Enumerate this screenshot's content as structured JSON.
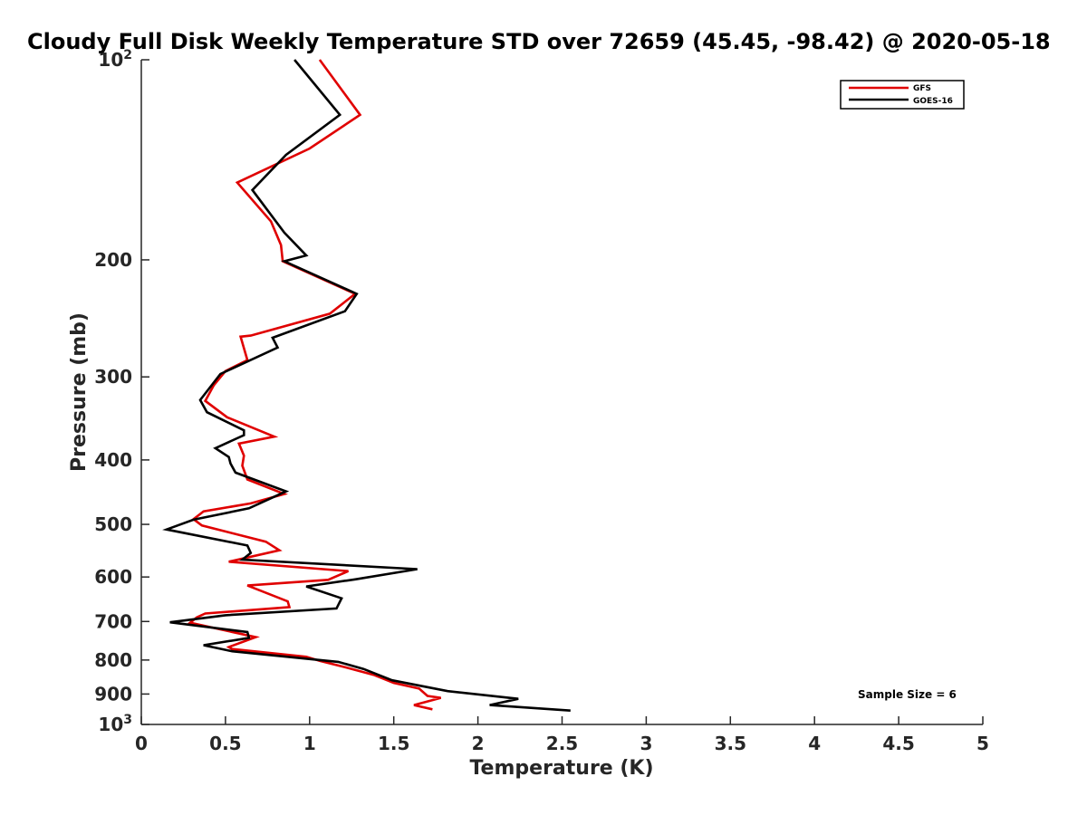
{
  "chart_data": {
    "type": "line",
    "title": "Cloudy Full Disk Weekly Temperature STD over 72659 (45.45, -98.42) @ 2020-05-18",
    "xlabel": "Temperature (K)",
    "ylabel": "Pressure (mb)",
    "xlim": [
      0,
      5
    ],
    "ylim": [
      100,
      1000
    ],
    "yscale": "log",
    "y_reversed": true,
    "grid": false,
    "legend_position": "top-right",
    "x_ticks": [
      "0",
      "0.5",
      "1",
      "1.5",
      "2",
      "2.5",
      "3",
      "3.5",
      "4",
      "4.5",
      "5"
    ],
    "x_tick_values": [
      0,
      0.5,
      1,
      1.5,
      2,
      2.5,
      3,
      3.5,
      4,
      4.5,
      5
    ],
    "y_tick_labels": [
      {
        "value": 100,
        "base": "10",
        "exp": "2"
      },
      {
        "value": 200,
        "base": "200",
        "exp": ""
      },
      {
        "value": 300,
        "base": "300",
        "exp": ""
      },
      {
        "value": 400,
        "base": "400",
        "exp": ""
      },
      {
        "value": 500,
        "base": "500",
        "exp": ""
      },
      {
        "value": 600,
        "base": "600",
        "exp": ""
      },
      {
        "value": 700,
        "base": "700",
        "exp": ""
      },
      {
        "value": 800,
        "base": "800",
        "exp": ""
      },
      {
        "value": 900,
        "base": "900",
        "exp": ""
      },
      {
        "value": 1000,
        "base": "10",
        "exp": "3"
      }
    ],
    "annotation": "Sample Size = 6",
    "series": [
      {
        "name": "GFS",
        "color": "#e00000",
        "points": [
          [
            1.06,
            100
          ],
          [
            1.3,
            121
          ],
          [
            1.0,
            136
          ],
          [
            0.57,
            153
          ],
          [
            0.77,
            175
          ],
          [
            0.83,
            190
          ],
          [
            0.84,
            201
          ],
          [
            1.27,
            225
          ],
          [
            1.12,
            241
          ],
          [
            0.65,
            260
          ],
          [
            0.59,
            261
          ],
          [
            0.63,
            283
          ],
          [
            0.5,
            294
          ],
          [
            0.43,
            309
          ],
          [
            0.38,
            326
          ],
          [
            0.51,
            345
          ],
          [
            0.79,
            369
          ],
          [
            0.58,
            378
          ],
          [
            0.61,
            394
          ],
          [
            0.6,
            408
          ],
          [
            0.63,
            428
          ],
          [
            0.85,
            450
          ],
          [
            0.65,
            465
          ],
          [
            0.37,
            478
          ],
          [
            0.31,
            491
          ],
          [
            0.36,
            502
          ],
          [
            0.74,
            531
          ],
          [
            0.82,
            547
          ],
          [
            0.52,
            569
          ],
          [
            1.23,
            588
          ],
          [
            1.11,
            606
          ],
          [
            0.63,
            618
          ],
          [
            0.87,
            653
          ],
          [
            0.88,
            666
          ],
          [
            0.38,
            681
          ],
          [
            0.33,
            690
          ],
          [
            0.29,
            703
          ],
          [
            0.68,
            739
          ],
          [
            0.53,
            763
          ],
          [
            0.52,
            765
          ],
          [
            0.54,
            770
          ],
          [
            0.98,
            791
          ],
          [
            1.06,
            802
          ],
          [
            1.21,
            820
          ],
          [
            1.38,
            842
          ],
          [
            1.5,
            866
          ],
          [
            1.65,
            883
          ],
          [
            1.7,
            906
          ],
          [
            1.78,
            912
          ],
          [
            1.62,
            935
          ],
          [
            1.73,
            949
          ]
        ]
      },
      {
        "name": "GOES-16",
        "color": "#000000",
        "points": [
          [
            0.91,
            100
          ],
          [
            1.18,
            121
          ],
          [
            0.86,
            139
          ],
          [
            0.66,
            157
          ],
          [
            0.85,
            182
          ],
          [
            0.98,
            197
          ],
          [
            0.85,
            201
          ],
          [
            1.28,
            225
          ],
          [
            1.21,
            239
          ],
          [
            0.78,
            262
          ],
          [
            0.81,
            271
          ],
          [
            0.47,
            297
          ],
          [
            0.35,
            325
          ],
          [
            0.39,
            339
          ],
          [
            0.61,
            361
          ],
          [
            0.61,
            367
          ],
          [
            0.44,
            384
          ],
          [
            0.52,
            396
          ],
          [
            0.53,
            405
          ],
          [
            0.56,
            418
          ],
          [
            0.86,
            446
          ],
          [
            0.64,
            473
          ],
          [
            0.31,
            492
          ],
          [
            0.15,
            509
          ],
          [
            0.63,
            538
          ],
          [
            0.65,
            552
          ],
          [
            0.6,
            565
          ],
          [
            1.64,
            584
          ],
          [
            1.27,
            605
          ],
          [
            0.98,
            620
          ],
          [
            1.19,
            646
          ],
          [
            1.16,
            669
          ],
          [
            0.5,
            685
          ],
          [
            0.17,
            702
          ],
          [
            0.63,
            726
          ],
          [
            0.64,
            741
          ],
          [
            0.37,
            760
          ],
          [
            0.54,
            776
          ],
          [
            1.17,
            805
          ],
          [
            1.32,
            825
          ],
          [
            1.49,
            858
          ],
          [
            1.82,
            891
          ],
          [
            2.24,
            915
          ],
          [
            2.07,
            935
          ],
          [
            2.55,
            953
          ]
        ]
      }
    ]
  }
}
